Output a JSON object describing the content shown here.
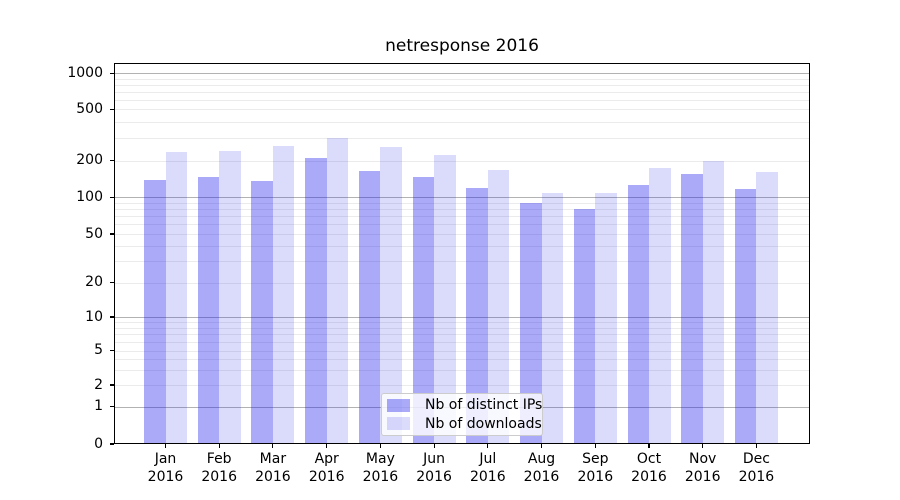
{
  "chart_data": {
    "type": "bar",
    "title": "netresponse 2016",
    "categories": [
      {
        "month": "Jan",
        "year": "2016"
      },
      {
        "month": "Feb",
        "year": "2016"
      },
      {
        "month": "Mar",
        "year": "2016"
      },
      {
        "month": "Apr",
        "year": "2016"
      },
      {
        "month": "May",
        "year": "2016"
      },
      {
        "month": "Jun",
        "year": "2016"
      },
      {
        "month": "Jul",
        "year": "2016"
      },
      {
        "month": "Aug",
        "year": "2016"
      },
      {
        "month": "Sep",
        "year": "2016"
      },
      {
        "month": "Oct",
        "year": "2016"
      },
      {
        "month": "Nov",
        "year": "2016"
      },
      {
        "month": "Dec",
        "year": "2016"
      }
    ],
    "series": [
      {
        "name": "Nb of distinct IPs",
        "color": "#aaaaf6",
        "fill": "rgba(25,25,235,0.37)",
        "values": [
          138,
          148,
          137,
          210,
          165,
          147,
          119,
          90,
          80,
          126,
          155,
          118
        ]
      },
      {
        "name": "Nb of downloads",
        "color": "#dcdcfa",
        "fill": "rgba(25,25,235,0.155)",
        "values": [
          235,
          240,
          260,
          300,
          255,
          220,
          168,
          108,
          109,
          174,
          200,
          161
        ]
      }
    ],
    "yaxis": {
      "scale": "symlog",
      "ylim": [
        0,
        1000
      ],
      "ticks": [
        {
          "label": "1000",
          "value": 1000
        },
        {
          "label": "500",
          "value": 500
        },
        {
          "label": "200",
          "value": 200
        },
        {
          "label": "100",
          "value": 100
        },
        {
          "label": "50",
          "value": 50
        },
        {
          "label": "20",
          "value": 20
        },
        {
          "label": "10",
          "value": 10
        },
        {
          "label": "5",
          "value": 5
        },
        {
          "label": "2",
          "value": 2
        },
        {
          "label": "1",
          "value": 1
        },
        {
          "label": "0",
          "value": 0
        }
      ]
    },
    "xlabel": "",
    "ylabel": "",
    "grid": "both",
    "legend_position": "lower center inside plot"
  },
  "colors": {
    "background": "#ffffff",
    "axis": "#000000",
    "grid_major": "#b2b2b2",
    "grid_minor": "#ebebeb",
    "bar_distinct_ips": "#aaaaf6",
    "bar_downloads": "#dcdcfa"
  }
}
